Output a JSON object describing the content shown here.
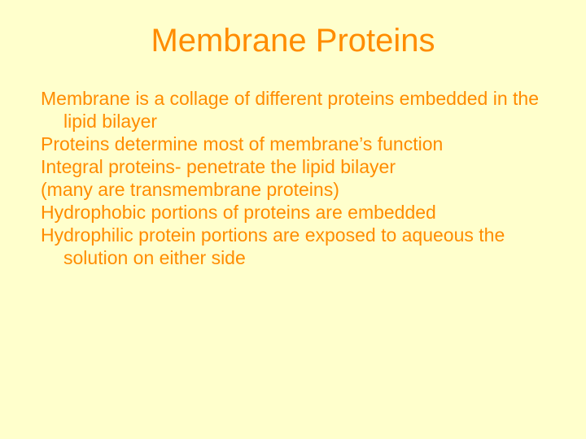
{
  "slide": {
    "background_color": "#ffffcc",
    "text_color": "#ff8c00",
    "title": "Membrane Proteins",
    "title_fontsize": 40,
    "body_fontsize": 23,
    "paragraphs": [
      "Membrane is a collage of different proteins embedded in the lipid bilayer",
      "Proteins determine most of membrane’s function",
      "Integral proteins- penetrate the lipid bilayer",
      "(many are transmembrane proteins)",
      "Hydrophobic portions of proteins are embedded",
      "Hydrophilic protein portions are exposed to aqueous the solution on either side"
    ]
  }
}
